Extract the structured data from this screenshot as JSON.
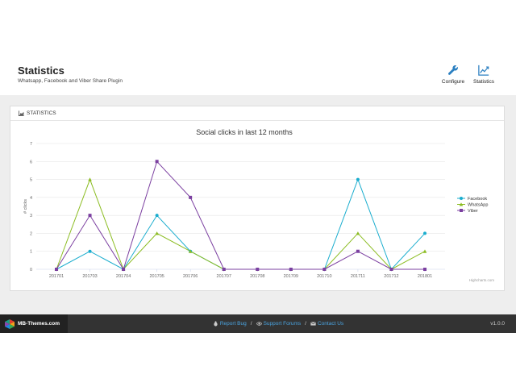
{
  "header": {
    "title": "Statistics",
    "subtitle": "Whatsapp, Facebook and Viber Share Plugin",
    "buttons": [
      {
        "label": "Configure",
        "icon": "wrench-icon"
      },
      {
        "label": "Statistics",
        "icon": "line-chart-icon"
      }
    ]
  },
  "panel": {
    "heading": "STATISTICS",
    "heading_icon": "area-chart-icon"
  },
  "chart_data": {
    "type": "line",
    "title": "Social clicks in last 12 months",
    "xlabel": "",
    "ylabel": "# clicks",
    "ylim": [
      0,
      7
    ],
    "yticks": [
      0,
      1,
      2,
      3,
      4,
      5,
      6,
      7
    ],
    "grid": true,
    "legend_position": "right",
    "credits": "Highcharts.com",
    "categories": [
      "201701",
      "201703",
      "201704",
      "201705",
      "201706",
      "201707",
      "201708",
      "201709",
      "201710",
      "201711",
      "201712",
      "201801"
    ],
    "series": [
      {
        "name": "Facebook",
        "color": "#1aadce",
        "marker": "circle",
        "values": [
          0,
          1,
          0,
          3,
          1,
          0,
          0,
          0,
          0,
          5,
          0,
          2
        ]
      },
      {
        "name": "WhatsApp",
        "color": "#8bbc21",
        "marker": "triangle",
        "values": [
          0,
          5,
          0,
          2,
          1,
          0,
          0,
          0,
          0,
          2,
          0,
          1
        ]
      },
      {
        "name": "Viber",
        "color": "#7b3fa0",
        "marker": "square",
        "values": [
          0,
          3,
          0,
          6,
          4,
          0,
          0,
          0,
          0,
          1,
          0,
          0
        ]
      }
    ]
  },
  "footer": {
    "brand": "MB-Themes.com",
    "links": [
      {
        "label": "Report Bug",
        "icon": "bug-icon"
      },
      {
        "label": "Support Forums",
        "icon": "eye-icon"
      },
      {
        "label": "Contact Us",
        "icon": "envelope-icon"
      }
    ],
    "separator": "/",
    "version": "v1.0.0"
  }
}
